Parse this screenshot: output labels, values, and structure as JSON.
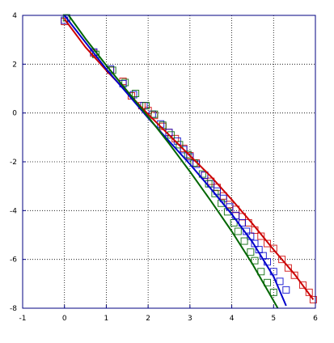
{
  "chart_data": {
    "type": "scatter",
    "title": "",
    "xlabel": "",
    "ylabel": "",
    "xlim": [
      -1,
      6
    ],
    "ylim": [
      -8,
      4
    ],
    "x_ticks": [
      -1,
      0,
      1,
      2,
      3,
      4,
      5,
      6
    ],
    "y_ticks": [
      4,
      2,
      0,
      -2,
      -4,
      -6,
      -8
    ],
    "x_tick_labels": [
      "-1",
      "0",
      "1",
      "2",
      "3",
      "4",
      "5",
      "6"
    ],
    "y_tick_labels": [
      "4",
      "2",
      "0",
      "-2",
      "-4",
      "-6",
      "-8"
    ],
    "grid": true,
    "legend": "none",
    "series": [
      {
        "color": "#cc0000",
        "marker": "square-open",
        "points": [
          [
            0.0,
            3.75
          ],
          [
            0.7,
            2.45
          ],
          [
            1.1,
            1.75
          ],
          [
            1.4,
            1.3
          ],
          [
            1.6,
            0.7
          ],
          [
            1.85,
            0.3
          ],
          [
            2.0,
            0.1
          ],
          [
            2.15,
            -0.1
          ],
          [
            2.35,
            -0.55
          ],
          [
            2.5,
            -0.8
          ],
          [
            2.65,
            -1.05
          ],
          [
            2.85,
            -1.45
          ],
          [
            3.0,
            -1.75
          ],
          [
            3.15,
            -2.05
          ],
          [
            3.35,
            -2.55
          ],
          [
            3.5,
            -2.8
          ],
          [
            3.65,
            -3.05
          ],
          [
            3.8,
            -3.4
          ],
          [
            3.95,
            -3.75
          ],
          [
            4.1,
            -3.95
          ],
          [
            4.25,
            -4.25
          ],
          [
            4.4,
            -4.5
          ],
          [
            4.55,
            -4.8
          ],
          [
            4.7,
            -5.05
          ],
          [
            4.85,
            -5.35
          ],
          [
            5.0,
            -5.55
          ],
          [
            5.2,
            -6.0
          ],
          [
            5.35,
            -6.35
          ],
          [
            5.5,
            -6.65
          ],
          [
            5.7,
            -7.05
          ],
          [
            5.85,
            -7.35
          ],
          [
            5.95,
            -7.65
          ]
        ],
        "fit": [
          [
            0.0,
            3.85
          ],
          [
            0.5,
            2.7
          ],
          [
            1.0,
            1.75
          ],
          [
            1.5,
            0.85
          ],
          [
            2.0,
            -0.05
          ],
          [
            2.5,
            -0.9
          ],
          [
            3.0,
            -1.75
          ],
          [
            3.5,
            -2.6
          ],
          [
            4.0,
            -3.55
          ],
          [
            4.5,
            -4.55
          ],
          [
            5.0,
            -5.6
          ],
          [
            5.5,
            -6.6
          ],
          [
            5.95,
            -7.65
          ]
        ]
      },
      {
        "color": "#0000cc",
        "marker": "square-open",
        "points": [
          [
            0.0,
            3.8
          ],
          [
            0.7,
            2.5
          ],
          [
            1.1,
            1.8
          ],
          [
            1.4,
            1.2
          ],
          [
            1.65,
            0.75
          ],
          [
            1.9,
            0.3
          ],
          [
            2.1,
            -0.05
          ],
          [
            2.3,
            -0.45
          ],
          [
            2.5,
            -0.8
          ],
          [
            2.7,
            -1.15
          ],
          [
            2.85,
            -1.5
          ],
          [
            3.0,
            -1.8
          ],
          [
            3.15,
            -2.1
          ],
          [
            3.35,
            -2.55
          ],
          [
            3.5,
            -2.9
          ],
          [
            3.65,
            -3.2
          ],
          [
            3.8,
            -3.5
          ],
          [
            3.95,
            -3.85
          ],
          [
            4.1,
            -4.2
          ],
          [
            4.25,
            -4.5
          ],
          [
            4.35,
            -4.85
          ],
          [
            4.45,
            -5.05
          ],
          [
            4.55,
            -5.35
          ],
          [
            4.65,
            -5.6
          ],
          [
            4.75,
            -5.85
          ],
          [
            4.85,
            -6.1
          ],
          [
            5.0,
            -6.5
          ],
          [
            5.15,
            -6.9
          ],
          [
            5.3,
            -7.25
          ]
        ],
        "fit": [
          [
            0.0,
            4.0
          ],
          [
            0.5,
            2.9
          ],
          [
            1.0,
            1.8
          ],
          [
            1.5,
            0.8
          ],
          [
            2.0,
            -0.2
          ],
          [
            2.5,
            -1.15
          ],
          [
            3.0,
            -2.1
          ],
          [
            3.5,
            -3.1
          ],
          [
            4.0,
            -4.15
          ],
          [
            4.5,
            -5.3
          ],
          [
            5.0,
            -6.7
          ],
          [
            5.3,
            -7.9
          ]
        ]
      },
      {
        "color": "#006600",
        "marker": "square-open",
        "points": [
          [
            0.05,
            3.9
          ],
          [
            0.75,
            2.4
          ],
          [
            1.15,
            1.75
          ],
          [
            1.45,
            1.25
          ],
          [
            1.7,
            0.8
          ],
          [
            1.95,
            0.3
          ],
          [
            2.15,
            -0.05
          ],
          [
            2.35,
            -0.5
          ],
          [
            2.55,
            -0.9
          ],
          [
            2.75,
            -1.3
          ],
          [
            2.95,
            -1.7
          ],
          [
            3.1,
            -2.05
          ],
          [
            3.3,
            -2.5
          ],
          [
            3.45,
            -2.9
          ],
          [
            3.6,
            -3.3
          ],
          [
            3.75,
            -3.7
          ],
          [
            3.9,
            -4.05
          ],
          [
            4.05,
            -4.5
          ],
          [
            4.15,
            -4.85
          ],
          [
            4.3,
            -5.25
          ],
          [
            4.45,
            -5.7
          ],
          [
            4.55,
            -6.05
          ],
          [
            4.7,
            -6.5
          ],
          [
            4.85,
            -6.95
          ],
          [
            5.0,
            -7.35
          ]
        ],
        "fit": [
          [
            0.1,
            4.0
          ],
          [
            0.5,
            3.05
          ],
          [
            1.0,
            1.95
          ],
          [
            1.5,
            0.9
          ],
          [
            2.0,
            -0.15
          ],
          [
            2.5,
            -1.25
          ],
          [
            3.0,
            -2.4
          ],
          [
            3.5,
            -3.6
          ],
          [
            4.0,
            -4.85
          ],
          [
            4.5,
            -6.2
          ],
          [
            5.0,
            -7.7
          ],
          [
            5.1,
            -8.0
          ]
        ]
      }
    ]
  }
}
